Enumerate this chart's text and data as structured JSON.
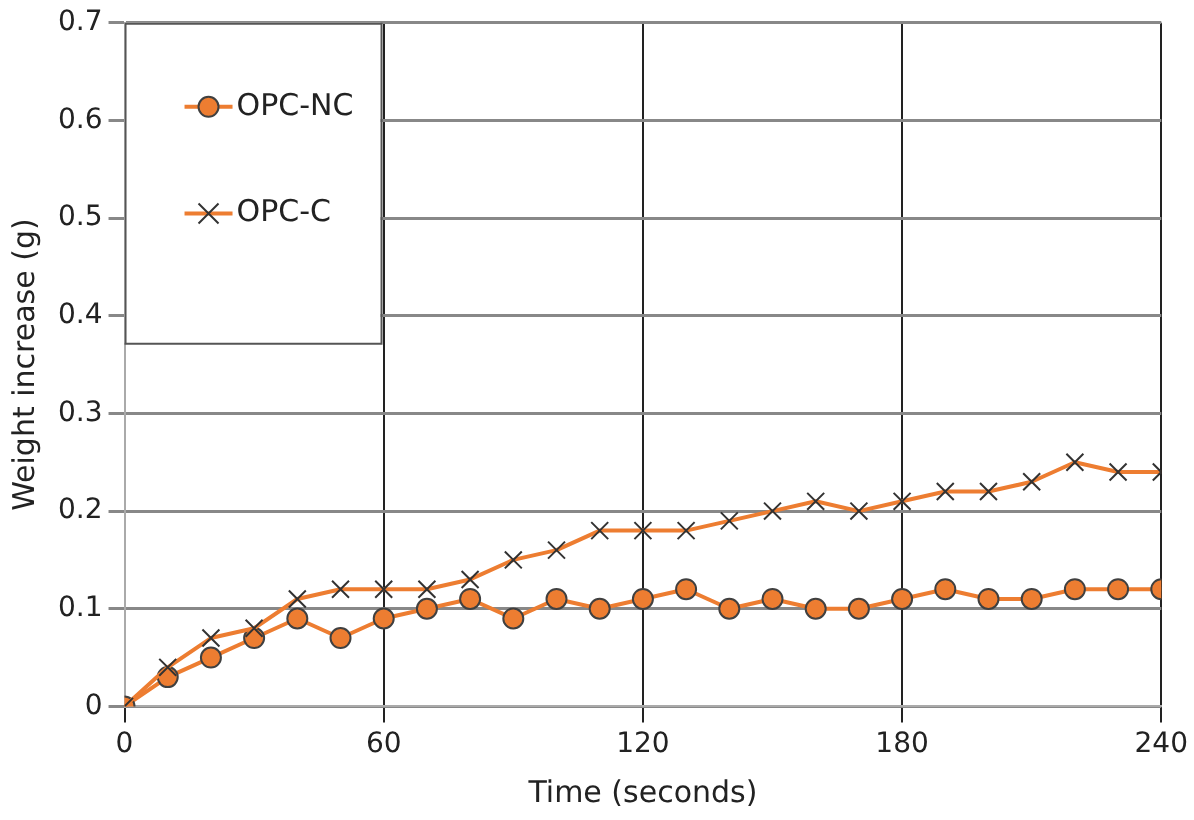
{
  "chart_data": {
    "type": "line",
    "xlabel": "Time (seconds)",
    "ylabel": "Weight increase (g)",
    "x": [
      0,
      10,
      20,
      30,
      40,
      50,
      60,
      70,
      80,
      90,
      100,
      110,
      120,
      130,
      140,
      150,
      160,
      170,
      180,
      190,
      200,
      210,
      220,
      230,
      240
    ],
    "series": [
      {
        "name": "OPC-NC",
        "color": "#ed7d31",
        "marker": "circle",
        "values": [
          0,
          0.03,
          0.05,
          0.07,
          0.09,
          0.07,
          0.09,
          0.1,
          0.11,
          0.09,
          0.11,
          0.1,
          0.11,
          0.12,
          0.1,
          0.11,
          0.1,
          0.1,
          0.11,
          0.12,
          0.11,
          0.11,
          0.12,
          0.12,
          0.12
        ]
      },
      {
        "name": "OPC-C",
        "color": "#ed7d31",
        "marker": "cross",
        "values": [
          0,
          0.04,
          0.07,
          0.08,
          0.11,
          0.12,
          0.12,
          0.12,
          0.13,
          0.15,
          0.16,
          0.18,
          0.18,
          0.18,
          0.19,
          0.2,
          0.21,
          0.2,
          0.21,
          0.22,
          0.22,
          0.23,
          0.25,
          0.24,
          0.24
        ]
      }
    ],
    "xlim": [
      0,
      240
    ],
    "xticks": [
      0,
      60,
      120,
      180,
      240
    ],
    "ylim": [
      0,
      0.7
    ],
    "yticks": [
      0,
      0.1,
      0.2,
      0.3,
      0.4,
      0.5,
      0.6,
      0.7
    ],
    "grid": true,
    "legend": "top left"
  }
}
